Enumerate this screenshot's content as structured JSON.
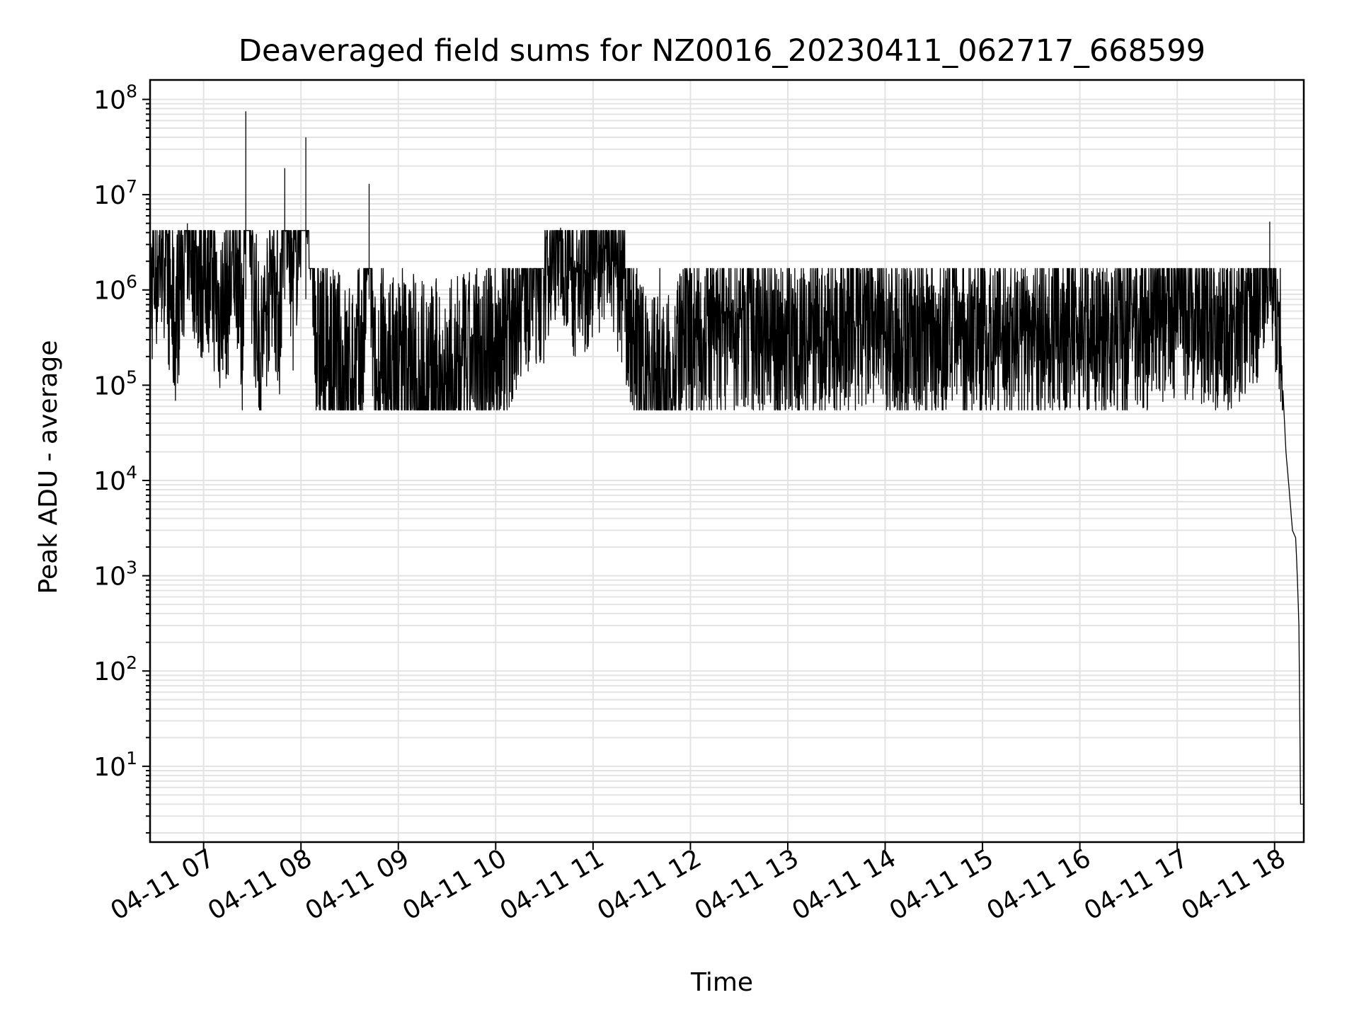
{
  "chart_data": {
    "type": "line",
    "title": "Deaveraged field sums for NZ0016_20230411_062717_668599",
    "xlabel": "Time",
    "ylabel": "Peak ADU - average",
    "yscale": "log",
    "grid": "major and minor",
    "legend": "none",
    "line_color": "#000000",
    "grid_color": "#e3e3e3",
    "xlim": [
      "04-11 06:27",
      "04-11 18:18"
    ],
    "ylim": [
      1.6,
      160000000
    ],
    "x_ticks": [
      {
        "value": "04-11 07:00",
        "label": "04-11 07"
      },
      {
        "value": "04-11 08:00",
        "label": "04-11 08"
      },
      {
        "value": "04-11 09:00",
        "label": "04-11 09"
      },
      {
        "value": "04-11 10:00",
        "label": "04-11 10"
      },
      {
        "value": "04-11 11:00",
        "label": "04-11 11"
      },
      {
        "value": "04-11 12:00",
        "label": "04-11 12"
      },
      {
        "value": "04-11 13:00",
        "label": "04-11 13"
      },
      {
        "value": "04-11 14:00",
        "label": "04-11 14"
      },
      {
        "value": "04-11 15:00",
        "label": "04-11 15"
      },
      {
        "value": "04-11 16:00",
        "label": "04-11 16"
      },
      {
        "value": "04-11 17:00",
        "label": "04-11 17"
      },
      {
        "value": "04-11 18:00",
        "label": "04-11 18"
      }
    ],
    "y_ticks": [
      {
        "value": 10,
        "base": "10",
        "exp": "1"
      },
      {
        "value": 100,
        "base": "10",
        "exp": "2"
      },
      {
        "value": 1000,
        "base": "10",
        "exp": "3"
      },
      {
        "value": 10000,
        "base": "10",
        "exp": "4"
      },
      {
        "value": 100000,
        "base": "10",
        "exp": "5"
      },
      {
        "value": 1000000,
        "base": "10",
        "exp": "6"
      },
      {
        "value": 10000000,
        "base": "10",
        "exp": "7"
      },
      {
        "value": 100000000,
        "base": "10",
        "exp": "8"
      }
    ],
    "series": [
      {
        "x": [
          "04-11 06:27",
          "04-11 06:35",
          "04-11 06:42",
          "04-11 06:50",
          "04-11 06:58",
          "04-11 07:02",
          "04-11 07:10",
          "04-11 07:16",
          "04-11 07:20",
          "04-11 07:24",
          "04-11 07:26",
          "04-11 07:30",
          "04-11 07:35",
          "04-11 07:42",
          "04-11 07:47",
          "04-11 07:50",
          "04-11 07:55",
          "04-11 08:03",
          "04-11 08:10",
          "04-11 08:20",
          "04-11 08:30",
          "04-11 08:38",
          "04-11 08:42",
          "04-11 08:45",
          "04-11 08:50",
          "04-11 09:00",
          "04-11 09:15",
          "04-11 09:30",
          "04-11 09:45",
          "04-11 10:00",
          "04-11 10:15",
          "04-11 10:30",
          "04-11 10:40",
          "04-11 10:50",
          "04-11 11:00",
          "04-11 11:10",
          "04-11 11:20",
          "04-11 11:30",
          "04-11 11:45",
          "04-11 12:00",
          "04-11 12:30",
          "04-11 13:00",
          "04-11 13:30",
          "04-11 14:00",
          "04-11 14:30",
          "04-11 15:00",
          "04-11 15:30",
          "04-11 16:00",
          "04-11 16:30",
          "04-11 17:00",
          "04-11 17:30",
          "04-11 17:50",
          "04-11 17:57",
          "04-11 18:00",
          "04-11 18:03",
          "04-11 18:05",
          "04-11 18:07",
          "04-11 18:09",
          "04-11 18:11",
          "04-11 18:13",
          "04-11 18:14",
          "04-11 18:15",
          "04-11 18:16",
          "04-11 18:18"
        ],
        "y": [
          1000000,
          3000000,
          400000,
          5000000,
          1200000,
          2000000,
          600000,
          1000000,
          3000000,
          300000,
          75000000,
          1500000,
          200000,
          2000000,
          500000,
          19000000,
          1000000,
          40000000,
          300000,
          150000,
          100000,
          200000,
          13000000,
          80000,
          100000,
          150000,
          120000,
          100000,
          130000,
          200000,
          1500000,
          2000000,
          4500000,
          1200000,
          2500000,
          3500000,
          800000,
          150000,
          100000,
          300000,
          400000,
          300000,
          350000,
          400000,
          300000,
          350000,
          300000,
          400000,
          350000,
          600000,
          400000,
          800000,
          5200000,
          1000000,
          500000,
          100000,
          20000,
          8000,
          3000,
          2500,
          1000,
          300,
          4,
          4
        ]
      }
    ]
  }
}
